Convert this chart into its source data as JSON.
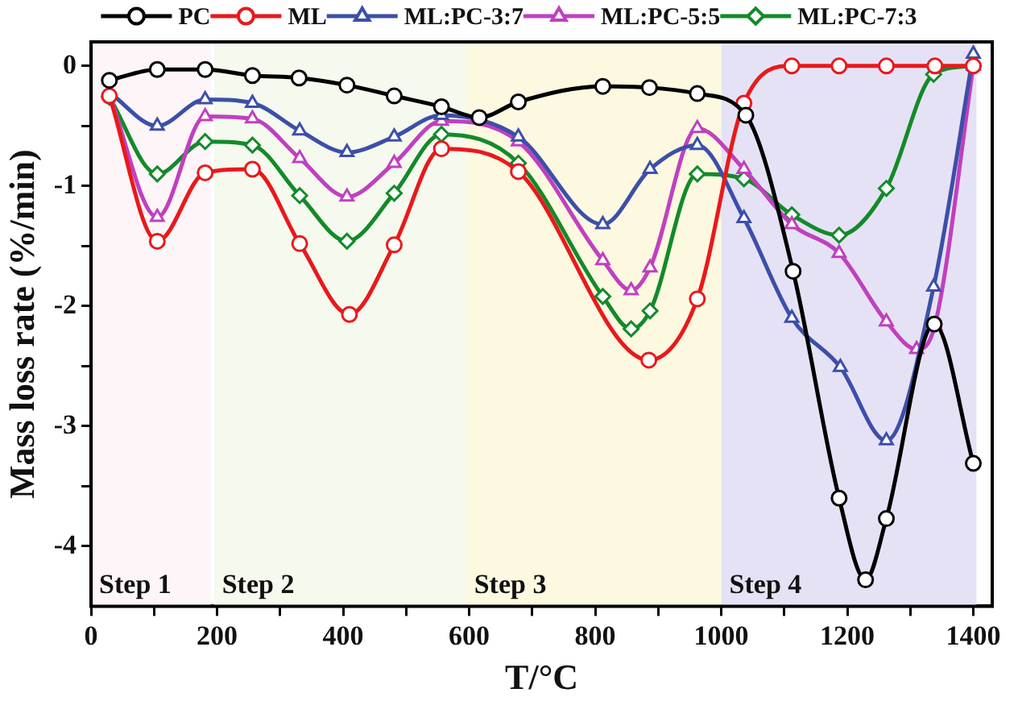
{
  "chart_data": {
    "type": "line",
    "xlabel": "T/°C",
    "ylabel": "Mass loss rate (%/min)",
    "xlim": [
      0,
      1430
    ],
    "ylim": [
      -4.5,
      0.2
    ],
    "xticks": [
      0,
      {
        "value": 100,
        "label": null
      },
      200,
      {
        "value": 300,
        "label": null
      },
      400,
      {
        "value": 500,
        "label": null
      },
      600,
      {
        "value": 700,
        "label": null
      },
      800,
      {
        "value": 900,
        "label": null
      },
      1000,
      {
        "value": 1100,
        "label": null
      },
      1200,
      {
        "value": 1300,
        "label": null
      },
      1400
    ],
    "yticks": [
      0,
      {
        "value": -0.5,
        "label": null
      },
      -1,
      {
        "value": -1.5,
        "label": null
      },
      -2,
      {
        "value": -2.5,
        "label": null
      },
      -3,
      {
        "value": -3.5,
        "label": null
      },
      -4
    ],
    "grid": false,
    "legend": "top",
    "line_style": "solid",
    "bands": [
      {
        "axis": "x",
        "from": 0,
        "to": 190,
        "label": "Step 1",
        "color": "#fdf5f8"
      },
      {
        "axis": "x",
        "from": 195,
        "to": 595,
        "label": "Step 2",
        "color": "#f5f9ee"
      },
      {
        "axis": "x",
        "from": 595,
        "to": 1000,
        "label": "Step 3",
        "color": "#fdf8e0"
      },
      {
        "axis": "x",
        "from": 1000,
        "to": 1405,
        "label": "Step 4",
        "color": "#e6e2f5"
      }
    ],
    "series": [
      {
        "name": "PC",
        "color": "#000000",
        "marker": "circle",
        "x": [
          29,
          105,
          181,
          256,
          330,
          406,
          481,
          556,
          616,
          678,
          812,
          886,
          962,
          1039,
          1114,
          1187,
          1229,
          1262,
          1338,
          1400
        ],
        "values": [
          -0.12,
          -0.03,
          -0.03,
          -0.08,
          -0.1,
          -0.16,
          -0.25,
          -0.34,
          -0.43,
          -0.3,
          -0.17,
          -0.18,
          -0.23,
          -0.41,
          -1.71,
          -3.6,
          -4.28,
          -3.77,
          -2.15,
          -3.31
        ]
      },
      {
        "name": "ML",
        "color": "#e8191c",
        "marker": "circle",
        "x": [
          29,
          105,
          181,
          256,
          331,
          410,
          481,
          556,
          678,
          885,
          962,
          1036,
          1112,
          1187,
          1262,
          1339,
          1400
        ],
        "values": [
          -0.25,
          -1.46,
          -0.89,
          -0.86,
          -1.48,
          -2.07,
          -1.49,
          -0.69,
          -0.88,
          -2.45,
          -1.94,
          -0.31,
          0,
          0,
          0,
          0,
          0
        ]
      },
      {
        "name": "ML:PC-3:7",
        "color": "#3c4fa8",
        "marker": "triangle",
        "x": [
          29,
          105,
          181,
          256,
          331,
          406,
          481,
          556,
          678,
          812,
          887,
          962,
          1036,
          1112,
          1189,
          1262,
          1337,
          1400
        ],
        "values": [
          -0.22,
          -0.5,
          -0.28,
          -0.31,
          -0.54,
          -0.72,
          -0.59,
          -0.41,
          -0.59,
          -1.32,
          -0.86,
          -0.66,
          -1.27,
          -2.1,
          -2.51,
          -3.12,
          -1.84,
          0.1
        ]
      },
      {
        "name": "ML:PC-5:5",
        "color": "#c040bf",
        "marker": "triangle",
        "x": [
          29,
          105,
          181,
          256,
          331,
          406,
          481,
          556,
          678,
          812,
          857,
          887,
          962,
          1036,
          1112,
          1187,
          1262,
          1310,
          1339,
          1400
        ],
        "values": [
          -0.24,
          -1.26,
          -0.42,
          -0.44,
          -0.77,
          -1.09,
          -0.81,
          -0.46,
          -0.63,
          -1.62,
          -1.87,
          -1.68,
          -0.52,
          -0.86,
          -1.32,
          -1.56,
          -2.13,
          -2.36,
          -2.16,
          0
        ]
      },
      {
        "name": "ML:PC-7:3",
        "color": "#138a2a",
        "marker": "diamond",
        "x": [
          29,
          105,
          181,
          256,
          331,
          406,
          481,
          556,
          678,
          812,
          857,
          887,
          962,
          1036,
          1112,
          1187,
          1262,
          1337,
          1400
        ],
        "values": [
          -0.26,
          -0.9,
          -0.63,
          -0.66,
          -1.08,
          -1.46,
          -1.06,
          -0.57,
          -0.81,
          -1.92,
          -2.19,
          -2.04,
          -0.9,
          -0.94,
          -1.24,
          -1.41,
          -1.02,
          -0.07,
          0
        ]
      }
    ]
  }
}
